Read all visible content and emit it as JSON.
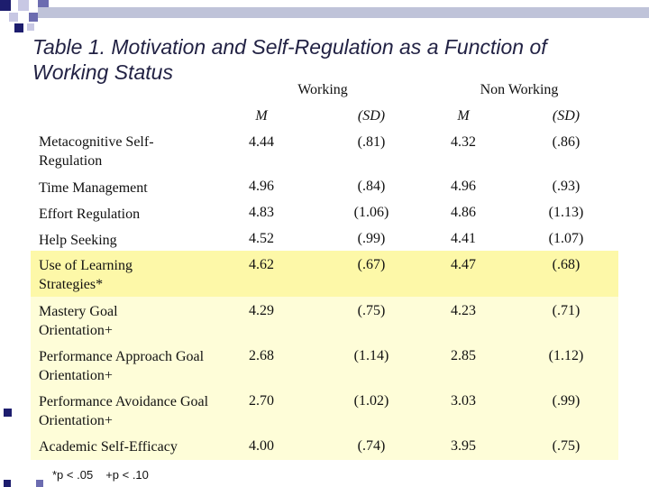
{
  "title": "Table 1. Motivation and Self-Regulation as a Function of Working Status",
  "colors": {
    "decoration_dark": "#1d1d6e",
    "decoration_mid": "#6c6cb0",
    "decoration_light": "#c8c8e4",
    "highlight_strong": "#fdf8a8",
    "highlight_soft": "#fefdd8",
    "title_text": "#222244"
  },
  "table": {
    "group_headers": [
      "Working",
      "Non Working"
    ],
    "column_headers": [
      "M",
      "(SD)",
      "M",
      "(SD)"
    ],
    "rows": [
      {
        "label": "Metacognitive Self-Regulation",
        "values": [
          "4.44",
          "(.81)",
          "4.32",
          "(.86)"
        ]
      },
      {
        "label": "Time Management",
        "values": [
          "4.96",
          "(.84)",
          "4.96",
          "(.93)"
        ]
      },
      {
        "label": "Effort Regulation",
        "values": [
          "4.83",
          "(1.06)",
          "4.86",
          "(1.13)"
        ]
      },
      {
        "label": "Help Seeking",
        "values": [
          "4.52",
          "(.99)",
          "4.41",
          "(1.07)"
        ]
      },
      {
        "label": "Use of Learning Strategies*",
        "values": [
          "4.62",
          "(.67)",
          "4.47",
          "(.68)"
        ]
      },
      {
        "label": "Mastery Goal Orientation+",
        "values": [
          "4.29",
          "(.75)",
          "4.23",
          "(.71)"
        ]
      },
      {
        "label": "Performance Approach Goal Orientation+",
        "values": [
          "2.68",
          "(1.14)",
          "2.85",
          "(1.12)"
        ]
      },
      {
        "label": "Performance Avoidance Goal Orientation+",
        "values": [
          "2.70",
          "(1.02)",
          "3.03",
          "(.99)"
        ]
      },
      {
        "label": "Academic Self-Efficacy",
        "values": [
          "4.00",
          "(.74)",
          "3.95",
          "(.75)"
        ]
      }
    ]
  },
  "footnotes": [
    "*p < .05",
    "+p < .10"
  ]
}
